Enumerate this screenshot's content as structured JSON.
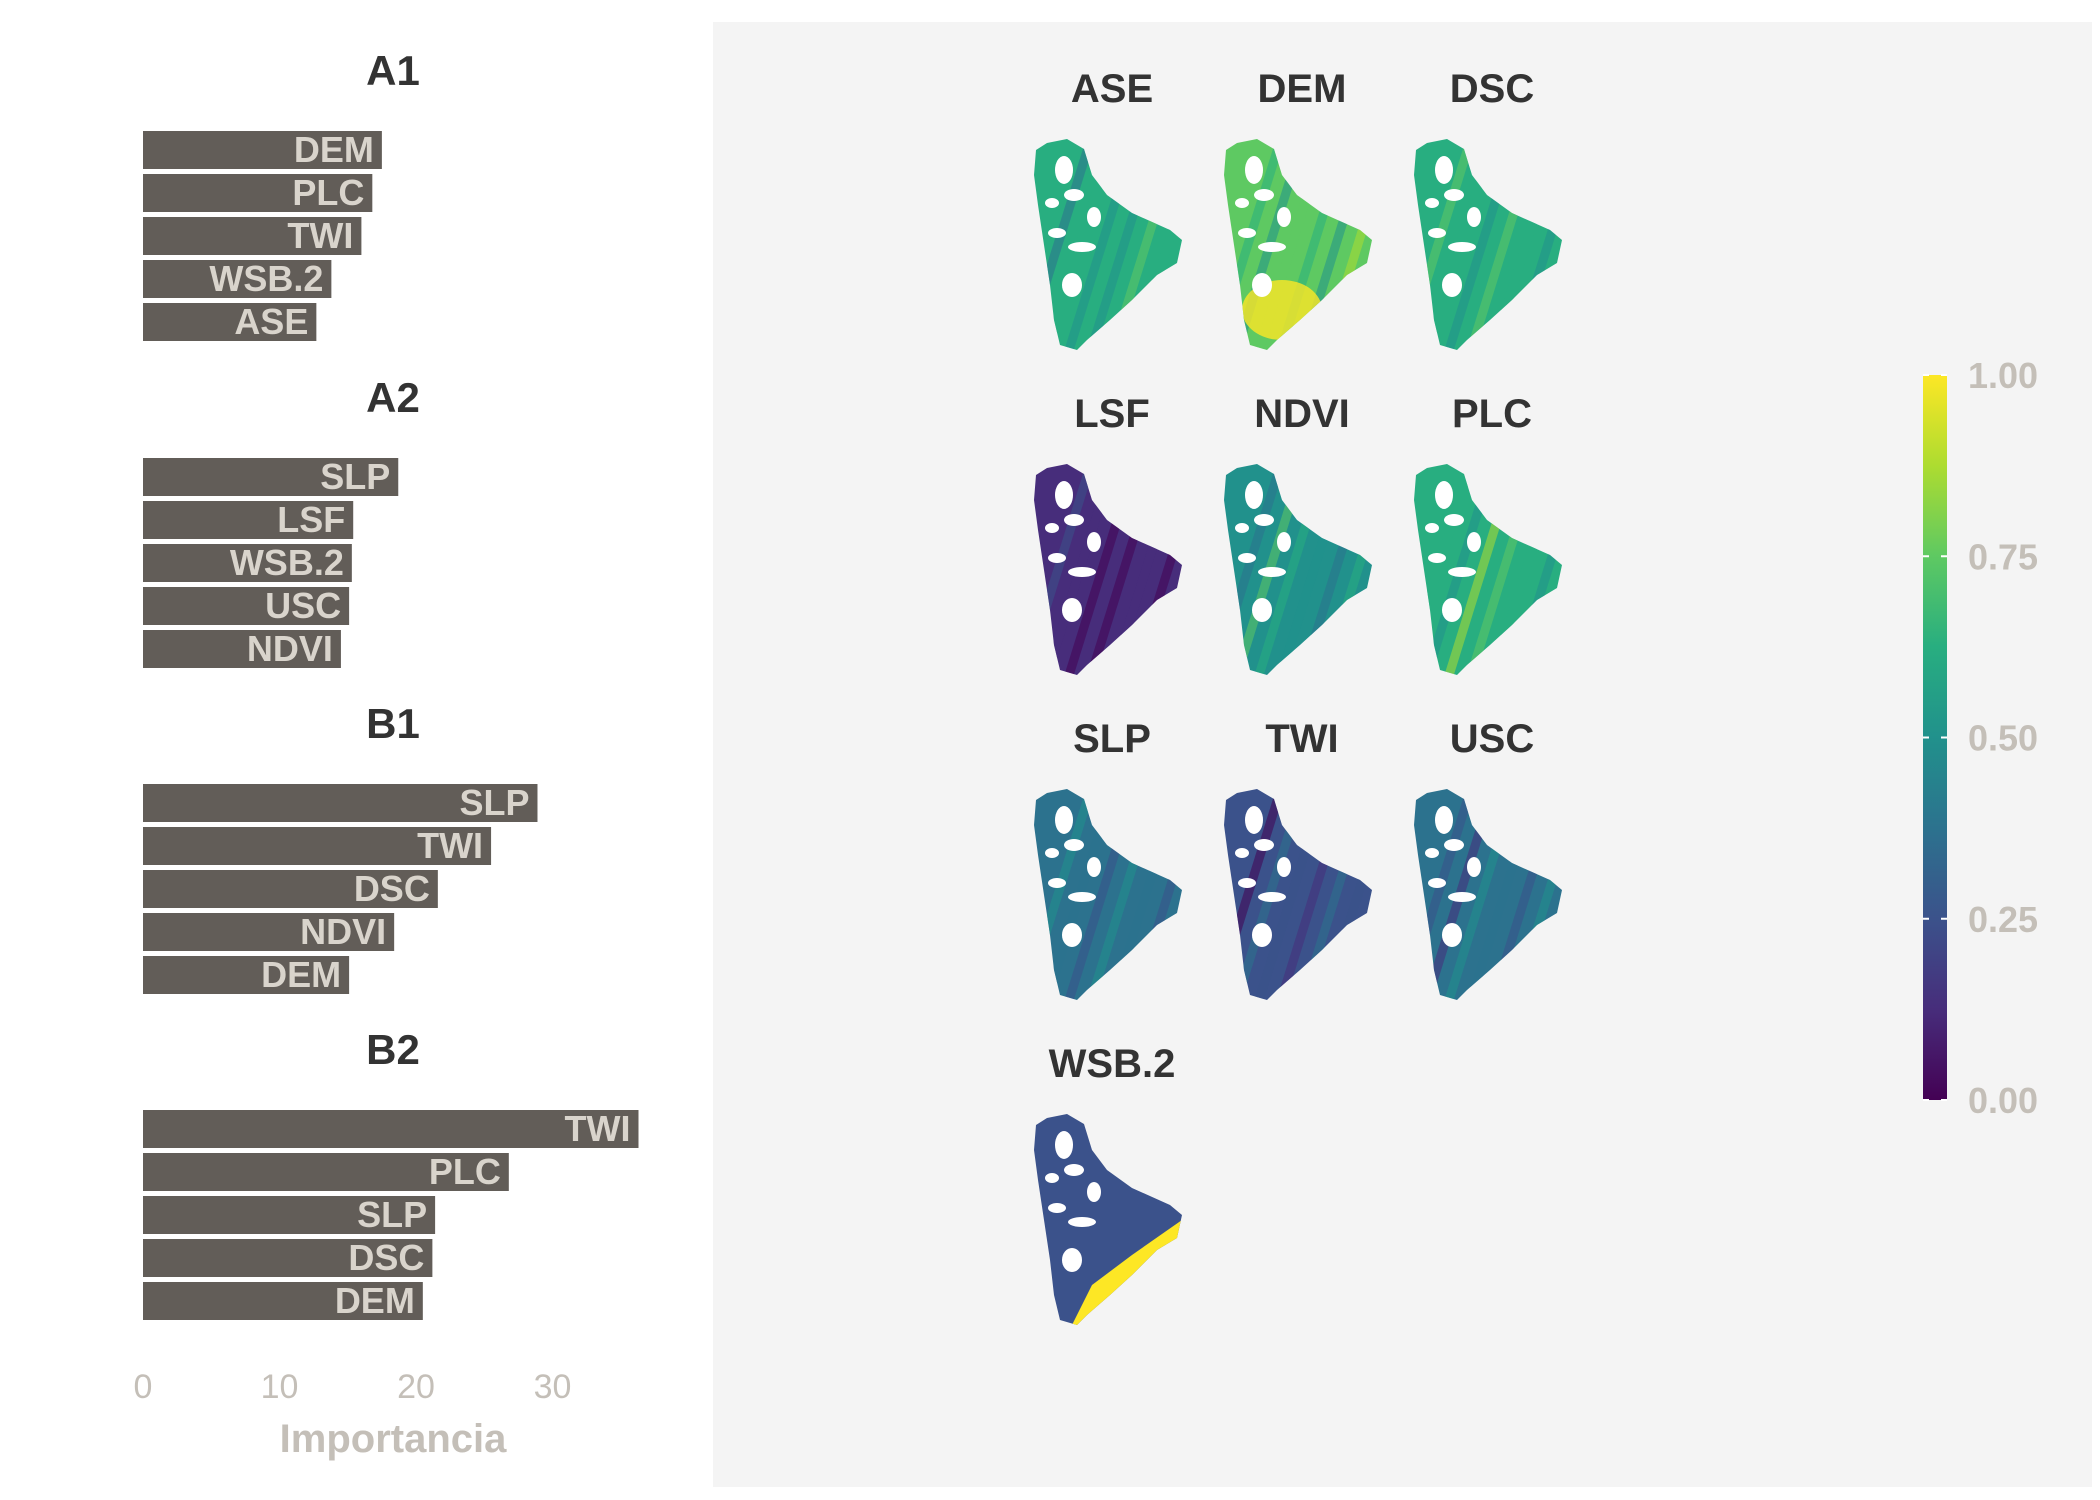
{
  "colors": {
    "bar": "#625d58",
    "bar_label": "#d9d4cc",
    "axis_text": "#c4bfb8",
    "title": "#333333",
    "map_panel": "#f4f4f4"
  },
  "chart_data": [
    {
      "type": "bar",
      "orientation": "horizontal",
      "facets": [
        {
          "title": "A1",
          "categories": [
            "DEM",
            "PLC",
            "TWI",
            "WSB.2",
            "ASE"
          ],
          "values": [
            17.5,
            16.8,
            16.0,
            13.8,
            12.7
          ]
        },
        {
          "title": "A2",
          "categories": [
            "SLP",
            "LSF",
            "WSB.2",
            "USC",
            "NDVI"
          ],
          "values": [
            18.7,
            15.4,
            15.3,
            15.1,
            14.5
          ]
        },
        {
          "title": "B1",
          "categories": [
            "SLP",
            "TWI",
            "DSC",
            "NDVI",
            "DEM"
          ],
          "values": [
            28.9,
            25.5,
            21.6,
            18.4,
            15.1
          ]
        },
        {
          "title": "B2",
          "categories": [
            "TWI",
            "PLC",
            "SLP",
            "DSC",
            "DEM"
          ],
          "values": [
            36.3,
            26.8,
            21.4,
            21.2,
            20.5
          ]
        }
      ],
      "xlabel": "Importancia",
      "xticks": [
        0,
        10,
        20,
        30
      ],
      "xlim": [
        0,
        37
      ]
    },
    {
      "type": "heatmap",
      "panels": [
        "ASE",
        "DEM",
        "DSC",
        "LSF",
        "NDVI",
        "PLC",
        "SLP",
        "TWI",
        "USC",
        "WSB.2"
      ],
      "mean_level": [
        0.6,
        0.7,
        0.65,
        0.1,
        0.55,
        0.66,
        0.35,
        0.22,
        0.33,
        0.2
      ],
      "colorbar": {
        "ticks": [
          "0.00",
          "0.25",
          "0.50",
          "0.75",
          "1.00"
        ],
        "range": [
          0,
          1
        ],
        "colormap": "viridis"
      }
    }
  ]
}
